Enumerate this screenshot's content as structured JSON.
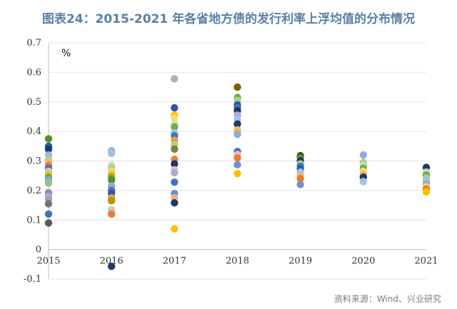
{
  "title": "图表24：2015-2021 年各省地方债的发行利率上浮均值的分布情况",
  "source": "资料来源：Wind、兴业研究",
  "chart_data": {
    "type": "scatter",
    "title": "图表24：2015-2021 年各省地方债的发行利率上浮均值的分布情况",
    "unit_label": "%",
    "xlabel": "",
    "ylabel": "",
    "xlim": [
      2015,
      2021
    ],
    "ylim": [
      -0.1,
      0.7
    ],
    "x_ticks": [
      "2015",
      "2016",
      "2017",
      "2018",
      "2019",
      "2020",
      "2021"
    ],
    "y_ticks": [
      "-0.1",
      "0",
      "0.1",
      "0.2",
      "0.3",
      "0.4",
      "0.5",
      "0.6",
      "0.7"
    ],
    "grid": "horizontal",
    "legend": "none",
    "points": [
      {
        "x": 2015,
        "y": 0.375,
        "color": "#5a8f2a"
      },
      {
        "x": 2015,
        "y": 0.35,
        "color": "#2e58a6"
      },
      {
        "x": 2015,
        "y": 0.34,
        "color": "#1a3c6e"
      },
      {
        "x": 2015,
        "y": 0.32,
        "color": "#9ab7e0"
      },
      {
        "x": 2015,
        "y": 0.305,
        "color": "#a9d18e"
      },
      {
        "x": 2015,
        "y": 0.295,
        "color": "#f4b183"
      },
      {
        "x": 2015,
        "y": 0.285,
        "color": "#ed7d31"
      },
      {
        "x": 2015,
        "y": 0.275,
        "color": "#4472c4"
      },
      {
        "x": 2015,
        "y": 0.265,
        "color": "#c9c9c9"
      },
      {
        "x": 2015,
        "y": 0.255,
        "color": "#ffc000"
      },
      {
        "x": 2015,
        "y": 0.245,
        "color": "#70ad47"
      },
      {
        "x": 2015,
        "y": 0.235,
        "color": "#8faadc"
      },
      {
        "x": 2015,
        "y": 0.225,
        "color": "#92c47d"
      },
      {
        "x": 2015,
        "y": 0.195,
        "color": "#f4b6c2"
      },
      {
        "x": 2015,
        "y": 0.19,
        "color": "#6f8fcf"
      },
      {
        "x": 2015,
        "y": 0.18,
        "color": "#b4a7d6"
      },
      {
        "x": 2015,
        "y": 0.17,
        "color": "#a5a5a5"
      },
      {
        "x": 2015,
        "y": 0.155,
        "color": "#767171"
      },
      {
        "x": 2015,
        "y": 0.12,
        "color": "#4472c4"
      },
      {
        "x": 2015,
        "y": 0.09,
        "color": "#595959"
      },
      {
        "x": 2016,
        "y": 0.335,
        "color": "#b0b0b0"
      },
      {
        "x": 2016,
        "y": 0.325,
        "color": "#9dc3e6"
      },
      {
        "x": 2016,
        "y": 0.285,
        "color": "#c5e0b4"
      },
      {
        "x": 2016,
        "y": 0.275,
        "color": "#a9d18e"
      },
      {
        "x": 2016,
        "y": 0.265,
        "color": "#ffd966"
      },
      {
        "x": 2016,
        "y": 0.255,
        "color": "#ffc000"
      },
      {
        "x": 2016,
        "y": 0.245,
        "color": "#70ad47"
      },
      {
        "x": 2016,
        "y": 0.235,
        "color": "#5a8f2a"
      },
      {
        "x": 2016,
        "y": 0.215,
        "color": "#8faadc"
      },
      {
        "x": 2016,
        "y": 0.2,
        "color": "#4472c4"
      },
      {
        "x": 2016,
        "y": 0.19,
        "color": "#2e58a6"
      },
      {
        "x": 2016,
        "y": 0.175,
        "color": "#d9a441"
      },
      {
        "x": 2016,
        "y": 0.165,
        "color": "#bf9000"
      },
      {
        "x": 2016,
        "y": 0.135,
        "color": "#c9c9c9"
      },
      {
        "x": 2016,
        "y": 0.12,
        "color": "#ed7d31"
      },
      {
        "x": 2016,
        "y": -0.057,
        "color": "#1f3864"
      },
      {
        "x": 2017,
        "y": 0.578,
        "color": "#b0b0b0"
      },
      {
        "x": 2017,
        "y": 0.48,
        "color": "#2e58a6"
      },
      {
        "x": 2017,
        "y": 0.455,
        "color": "#ffc000"
      },
      {
        "x": 2017,
        "y": 0.445,
        "color": "#ffd966"
      },
      {
        "x": 2017,
        "y": 0.425,
        "color": "#c5e0b4"
      },
      {
        "x": 2017,
        "y": 0.415,
        "color": "#70ad47"
      },
      {
        "x": 2017,
        "y": 0.395,
        "color": "#9dc3e6"
      },
      {
        "x": 2017,
        "y": 0.385,
        "color": "#4472c4"
      },
      {
        "x": 2017,
        "y": 0.37,
        "color": "#d9a441"
      },
      {
        "x": 2017,
        "y": 0.355,
        "color": "#a9d18e"
      },
      {
        "x": 2017,
        "y": 0.34,
        "color": "#7f7f3f"
      },
      {
        "x": 2017,
        "y": 0.305,
        "color": "#ed7d31"
      },
      {
        "x": 2017,
        "y": 0.29,
        "color": "#1f3864"
      },
      {
        "x": 2017,
        "y": 0.27,
        "color": "#c9c9c9"
      },
      {
        "x": 2017,
        "y": 0.26,
        "color": "#b4a7d6"
      },
      {
        "x": 2017,
        "y": 0.228,
        "color": "#4472c4"
      },
      {
        "x": 2017,
        "y": 0.19,
        "color": "#6f8fcf"
      },
      {
        "x": 2017,
        "y": 0.175,
        "color": "#f4b183"
      },
      {
        "x": 2017,
        "y": 0.158,
        "color": "#1f3864"
      },
      {
        "x": 2017,
        "y": 0.07,
        "color": "#ffc000"
      },
      {
        "x": 2018,
        "y": 0.55,
        "color": "#7f6000"
      },
      {
        "x": 2018,
        "y": 0.515,
        "color": "#70ad47"
      },
      {
        "x": 2018,
        "y": 0.505,
        "color": "#a9d18e"
      },
      {
        "x": 2018,
        "y": 0.49,
        "color": "#2e58a6"
      },
      {
        "x": 2018,
        "y": 0.48,
        "color": "#4472c4"
      },
      {
        "x": 2018,
        "y": 0.47,
        "color": "#1f3864"
      },
      {
        "x": 2018,
        "y": 0.455,
        "color": "#b4a7d6"
      },
      {
        "x": 2018,
        "y": 0.44,
        "color": "#9dc3e6"
      },
      {
        "x": 2018,
        "y": 0.425,
        "color": "#1a3c6e"
      },
      {
        "x": 2018,
        "y": 0.405,
        "color": "#f4b183"
      },
      {
        "x": 2018,
        "y": 0.395,
        "color": "#ffc000"
      },
      {
        "x": 2018,
        "y": 0.39,
        "color": "#8faadc"
      },
      {
        "x": 2018,
        "y": 0.332,
        "color": "#4472c4"
      },
      {
        "x": 2018,
        "y": 0.322,
        "color": "#f4b6c2"
      },
      {
        "x": 2018,
        "y": 0.31,
        "color": "#ed7d31"
      },
      {
        "x": 2018,
        "y": 0.287,
        "color": "#6f8fcf"
      },
      {
        "x": 2018,
        "y": 0.257,
        "color": "#ffc000"
      },
      {
        "x": 2019,
        "y": 0.318,
        "color": "#375623"
      },
      {
        "x": 2019,
        "y": 0.31,
        "color": "#5a8f2a"
      },
      {
        "x": 2019,
        "y": 0.3,
        "color": "#1f3864"
      },
      {
        "x": 2019,
        "y": 0.29,
        "color": "#a9d18e"
      },
      {
        "x": 2019,
        "y": 0.282,
        "color": "#4472c4"
      },
      {
        "x": 2019,
        "y": 0.272,
        "color": "#2e58a6"
      },
      {
        "x": 2019,
        "y": 0.262,
        "color": "#9dc3e6"
      },
      {
        "x": 2019,
        "y": 0.25,
        "color": "#f4b183"
      },
      {
        "x": 2019,
        "y": 0.24,
        "color": "#ed7d31"
      },
      {
        "x": 2019,
        "y": 0.22,
        "color": "#6f8fcf"
      },
      {
        "x": 2020,
        "y": 0.32,
        "color": "#8faadc"
      },
      {
        "x": 2020,
        "y": 0.295,
        "color": "#a9d18e"
      },
      {
        "x": 2020,
        "y": 0.285,
        "color": "#c5e0b4"
      },
      {
        "x": 2020,
        "y": 0.275,
        "color": "#70ad47"
      },
      {
        "x": 2020,
        "y": 0.265,
        "color": "#ffd966"
      },
      {
        "x": 2020,
        "y": 0.255,
        "color": "#f4b183"
      },
      {
        "x": 2020,
        "y": 0.245,
        "color": "#1f3864"
      },
      {
        "x": 2020,
        "y": 0.23,
        "color": "#9dc3e6"
      },
      {
        "x": 2021,
        "y": 0.278,
        "color": "#1f3864"
      },
      {
        "x": 2021,
        "y": 0.262,
        "color": "#c5e0b4"
      },
      {
        "x": 2021,
        "y": 0.252,
        "color": "#70ad47"
      },
      {
        "x": 2021,
        "y": 0.242,
        "color": "#a9d18e"
      },
      {
        "x": 2021,
        "y": 0.232,
        "color": "#9dc3e6"
      },
      {
        "x": 2021,
        "y": 0.222,
        "color": "#8faadc"
      },
      {
        "x": 2021,
        "y": 0.212,
        "color": "#ffd966"
      },
      {
        "x": 2021,
        "y": 0.205,
        "color": "#ed7d31"
      },
      {
        "x": 2021,
        "y": 0.195,
        "color": "#ffc000"
      }
    ]
  }
}
